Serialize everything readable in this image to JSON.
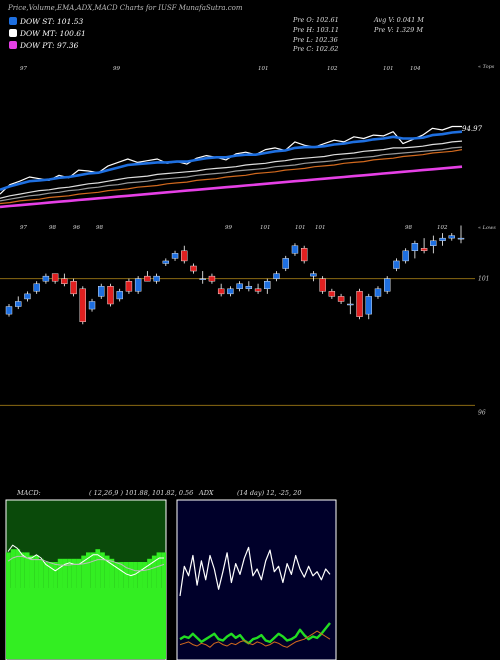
{
  "header": {
    "title": "Price,Volume,EMA,ADX,MACD Charts for IUSF MunafaSutra.com"
  },
  "legend": [
    {
      "label": "DOW ST: 101.53",
      "color": "#1e6fe0"
    },
    {
      "label": "DOW MT: 100.61",
      "color": "#ffffff"
    },
    {
      "label": "DOW PT: 97.36",
      "color": "#e640e6"
    }
  ],
  "stats": {
    "pre_o": "Pre   O: 102.61",
    "pre_h": "Pre   H: 103.11",
    "pre_l": "Pre   L: 102.36",
    "pre_c": "Pre   C: 102.62",
    "avg_v": "Avg V: 0.041 M",
    "pre_v": "Pre   V: 1.329 M"
  },
  "chart_data": [
    {
      "type": "line",
      "name": "ema-panel",
      "top_labels": [
        "97",
        "99",
        "101",
        "102",
        "101",
        "104"
      ],
      "bottom_labels": [
        "97",
        "98",
        "96",
        "98",
        "99",
        "101",
        "101",
        "101",
        "98",
        "102"
      ],
      "corner_labels": {
        "top_right": "« Tops",
        "bottom_right": "« Lows"
      },
      "last_value_label": "94.97",
      "series": [
        {
          "color": "#ffffff",
          "values": [
            11,
            22,
            26,
            31,
            29,
            27,
            33,
            30,
            39,
            38,
            36,
            44,
            48,
            52,
            48,
            50,
            52,
            47,
            49,
            46,
            53,
            56,
            54,
            51,
            58,
            60,
            57,
            63,
            65,
            62,
            72,
            68,
            66,
            70,
            74,
            72,
            78,
            76,
            80,
            79,
            84,
            70,
            75,
            80,
            88,
            86,
            90,
            90
          ]
        },
        {
          "color": "#1e6fe0",
          "values": [
            16,
            20,
            23,
            26,
            27,
            28,
            30,
            31,
            33,
            35,
            36,
            39,
            42,
            45,
            46,
            47,
            48,
            48,
            49,
            49,
            51,
            53,
            54,
            54,
            56,
            57,
            57,
            59,
            61,
            62,
            65,
            66,
            66,
            67,
            69,
            70,
            72,
            73,
            75,
            76,
            78,
            76,
            76,
            77,
            80,
            81,
            83,
            84
          ]
        },
        {
          "color": "#dddddd",
          "values": [
            6,
            9,
            11,
            13,
            15,
            16,
            18,
            19,
            21,
            23,
            24,
            26,
            28,
            30,
            31,
            32,
            34,
            35,
            36,
            37,
            38,
            40,
            41,
            42,
            43,
            45,
            46,
            47,
            49,
            50,
            52,
            53,
            54,
            55,
            57,
            58,
            59,
            61,
            62,
            63,
            65,
            65,
            66,
            67,
            69,
            70,
            72,
            73
          ]
        },
        {
          "color": "#999999",
          "values": [
            3,
            5,
            7,
            9,
            10,
            12,
            13,
            15,
            16,
            18,
            19,
            21,
            22,
            24,
            25,
            26,
            28,
            29,
            30,
            31,
            33,
            34,
            35,
            36,
            38,
            39,
            40,
            41,
            43,
            44,
            45,
            47,
            48,
            49,
            50,
            52,
            53,
            54,
            55,
            57,
            58,
            59,
            60,
            61,
            62,
            63,
            65,
            66
          ]
        },
        {
          "color": "#d2691e",
          "values": [
            0,
            1,
            3,
            4,
            5,
            7,
            8,
            9,
            11,
            12,
            13,
            15,
            16,
            17,
            19,
            20,
            21,
            23,
            24,
            25,
            27,
            28,
            29,
            31,
            32,
            33,
            35,
            36,
            37,
            39,
            40,
            41,
            43,
            44,
            45,
            47,
            48,
            49,
            51,
            52,
            53,
            55,
            56,
            57,
            59,
            60,
            61,
            63
          ]
        },
        {
          "color": "#e640e6",
          "values": [
            -4,
            -3,
            -2,
            -1,
            0,
            1,
            2,
            3,
            4,
            5,
            6,
            7,
            8,
            9,
            10,
            11,
            12,
            13,
            14,
            15,
            16,
            17,
            18,
            19,
            20,
            21,
            22,
            23,
            24,
            25,
            26,
            27,
            28,
            29,
            30,
            31,
            32,
            33,
            34,
            35,
            36,
            37,
            38,
            39,
            40,
            41,
            42,
            43
          ]
        }
      ]
    },
    {
      "type": "candlestick",
      "name": "price-panel",
      "ylim": [
        95.5,
        103
      ],
      "y_ticks": [
        "101",
        "96"
      ],
      "candles": [
        [
          99.6,
          100.0,
          99.5,
          99.9
        ],
        [
          99.9,
          100.3,
          99.8,
          100.1
        ],
        [
          100.2,
          100.5,
          100.1,
          100.4
        ],
        [
          100.5,
          100.9,
          100.4,
          100.8
        ],
        [
          100.9,
          101.2,
          100.8,
          101.1
        ],
        [
          101.2,
          101.2,
          100.8,
          100.9
        ],
        [
          101.0,
          101.2,
          100.7,
          100.8
        ],
        [
          100.9,
          101.0,
          100.3,
          100.4
        ],
        [
          100.6,
          100.7,
          99.2,
          99.3
        ],
        [
          99.8,
          100.2,
          99.7,
          100.1
        ],
        [
          100.3,
          100.8,
          100.2,
          100.7
        ],
        [
          100.7,
          100.8,
          99.9,
          100.0
        ],
        [
          100.2,
          100.6,
          100.1,
          100.5
        ],
        [
          100.9,
          101.0,
          100.4,
          100.5
        ],
        [
          100.5,
          101.1,
          100.4,
          101.0
        ],
        [
          101.1,
          101.3,
          100.9,
          100.9
        ],
        [
          100.9,
          101.2,
          100.8,
          101.1
        ],
        [
          101.6,
          101.8,
          101.5,
          101.7
        ],
        [
          101.8,
          102.1,
          101.7,
          102.0
        ],
        [
          102.1,
          102.3,
          101.6,
          101.7
        ],
        [
          101.5,
          101.6,
          101.2,
          101.3
        ],
        [
          101.0,
          101.3,
          100.8,
          101.0
        ],
        [
          101.1,
          101.2,
          100.8,
          100.9
        ],
        [
          100.6,
          100.8,
          100.3,
          100.4
        ],
        [
          100.4,
          100.7,
          100.3,
          100.6
        ],
        [
          100.6,
          100.9,
          100.5,
          100.8
        ],
        [
          100.6,
          100.9,
          100.5,
          100.7
        ],
        [
          100.6,
          100.8,
          100.4,
          100.5
        ],
        [
          100.6,
          101.0,
          100.4,
          100.9
        ],
        [
          101.0,
          101.3,
          100.9,
          101.2
        ],
        [
          101.4,
          101.9,
          101.3,
          101.8
        ],
        [
          102.0,
          102.4,
          101.9,
          102.3
        ],
        [
          102.2,
          102.3,
          101.6,
          101.7
        ],
        [
          101.1,
          101.3,
          100.9,
          101.2
        ],
        [
          101.0,
          101.1,
          100.4,
          100.5
        ],
        [
          100.5,
          100.6,
          100.2,
          100.3
        ],
        [
          100.3,
          100.4,
          100.0,
          100.1
        ],
        [
          100.0,
          100.3,
          99.6,
          100.0
        ],
        [
          100.5,
          100.6,
          99.4,
          99.5
        ],
        [
          99.6,
          100.4,
          99.4,
          100.3
        ],
        [
          100.3,
          100.7,
          100.2,
          100.6
        ],
        [
          100.5,
          101.1,
          100.4,
          101.0
        ],
        [
          101.4,
          101.8,
          101.3,
          101.7
        ],
        [
          101.7,
          102.2,
          101.6,
          102.1
        ],
        [
          102.1,
          102.5,
          101.8,
          102.4
        ],
        [
          102.2,
          102.6,
          102.0,
          102.1
        ],
        [
          102.3,
          102.7,
          102.0,
          102.5
        ],
        [
          102.5,
          102.8,
          102.3,
          102.6
        ],
        [
          102.6,
          102.8,
          102.5,
          102.7
        ],
        [
          102.6,
          103.1,
          102.4,
          102.6
        ]
      ]
    },
    {
      "type": "line",
      "name": "macd-panel",
      "label": "MACD:",
      "params": "( 12,26,9 ) 101.88, 101.82, 0.56",
      "histogram": [
        0.3,
        0.4,
        0.4,
        0.3,
        0.3,
        0.2,
        0.2,
        0.1,
        0.0,
        0.0,
        0.0,
        0.1,
        0.1,
        0.1,
        0.1,
        0.1,
        0.2,
        0.3,
        0.3,
        0.4,
        0.3,
        0.2,
        0.1,
        0.0,
        0.0,
        -0.1,
        -0.1,
        -0.1,
        -0.05,
        0.0,
        0.1,
        0.2,
        0.3,
        0.3
      ],
      "series": [
        {
          "color": "#ffffff",
          "values": [
            0.7,
            0.9,
            0.8,
            0.6,
            0.5,
            0.5,
            0.6,
            0.5,
            0.3,
            0.2,
            0.1,
            0.2,
            0.3,
            0.35,
            0.3,
            0.3,
            0.4,
            0.5,
            0.6,
            0.6,
            0.5,
            0.4,
            0.3,
            0.2,
            0.1,
            0.0,
            -0.05,
            0.0,
            0.1,
            0.2,
            0.3,
            0.4,
            0.5,
            0.5
          ]
        },
        {
          "color": "#bbbbbb",
          "values": [
            0.4,
            0.5,
            0.55,
            0.55,
            0.5,
            0.45,
            0.45,
            0.45,
            0.4,
            0.35,
            0.3,
            0.28,
            0.27,
            0.28,
            0.3,
            0.3,
            0.32,
            0.35,
            0.4,
            0.45,
            0.45,
            0.43,
            0.4,
            0.35,
            0.3,
            0.2,
            0.15,
            0.1,
            0.1,
            0.12,
            0.15,
            0.2,
            0.25,
            0.3
          ]
        }
      ]
    },
    {
      "type": "line",
      "name": "adx-panel",
      "label": "ADX",
      "params": "(14 day) 12, -25, 20",
      "series": [
        {
          "color": "#ffffff",
          "values": [
            40,
            62,
            55,
            70,
            48,
            66,
            52,
            70,
            60,
            45,
            58,
            72,
            50,
            64,
            56,
            68,
            76,
            55,
            60,
            52,
            66,
            74,
            58,
            62,
            50,
            64,
            56,
            70,
            60,
            54,
            62,
            55,
            58,
            52,
            60,
            56
          ]
        },
        {
          "color": "#22dd22",
          "values": [
            8,
            10,
            9,
            12,
            9,
            6,
            8,
            10,
            12,
            8,
            7,
            10,
            12,
            9,
            11,
            7,
            5,
            8,
            9,
            11,
            7,
            6,
            9,
            12,
            10,
            7,
            8,
            10,
            15,
            11,
            8,
            10,
            9,
            12,
            16,
            20
          ]
        },
        {
          "color": "#d2691e",
          "values": [
            4,
            5,
            6,
            4,
            3,
            5,
            4,
            2,
            5,
            6,
            4,
            3,
            5,
            4,
            6,
            7,
            5,
            4,
            6,
            5,
            3,
            4,
            6,
            5,
            3,
            2,
            4,
            6,
            7,
            8,
            10,
            12,
            14,
            12,
            10,
            8
          ]
        }
      ]
    }
  ]
}
